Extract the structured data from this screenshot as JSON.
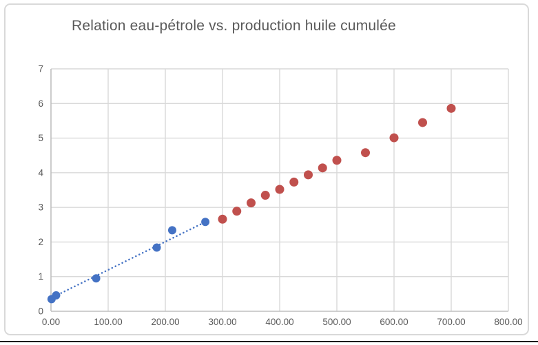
{
  "colors": {
    "blue_series": "#4472C4",
    "red_series": "#C0504D",
    "gridline": "#D9D9D9",
    "axis_line": "#BFBFBF",
    "chart_border": "#D9D9D9",
    "text": "#595959",
    "page_rule": "#000000",
    "background": "#FFFFFF"
  },
  "chart_data": {
    "type": "scatter",
    "title": "Relation eau-pétrole vs. production huile cumulée",
    "xlabel": "",
    "ylabel": "",
    "grid": true,
    "legend": "none",
    "x_axis": {
      "min": 0,
      "max": 800,
      "tick_step": 100,
      "tick_labels": [
        "0.00",
        "100.00",
        "200.00",
        "300.00",
        "400.00",
        "500.00",
        "600.00",
        "700.00",
        "800.00"
      ]
    },
    "y_axis": {
      "min": 0,
      "max": 7,
      "tick_step": 1,
      "tick_labels": [
        "0",
        "1",
        "2",
        "3",
        "4",
        "5",
        "6",
        "7"
      ]
    },
    "series": [
      {
        "id": "blue-series",
        "color": "#4472C4",
        "marker_diameter": 12,
        "points": [
          [
            1,
            0.35
          ],
          [
            9,
            0.46
          ],
          [
            79,
            0.95
          ],
          [
            185,
            1.84
          ],
          [
            212,
            2.34
          ],
          [
            270,
            2.58
          ]
        ]
      },
      {
        "id": "red-series",
        "color": "#C0504D",
        "marker_diameter": 13,
        "points": [
          [
            300,
            2.66
          ],
          [
            325,
            2.89
          ],
          [
            350,
            3.13
          ],
          [
            375,
            3.35
          ],
          [
            400,
            3.52
          ],
          [
            425,
            3.73
          ],
          [
            450,
            3.94
          ],
          [
            475,
            4.14
          ],
          [
            500,
            4.36
          ],
          [
            550,
            4.58
          ],
          [
            600,
            5.01
          ],
          [
            650,
            5.45
          ],
          [
            700,
            5.86
          ]
        ]
      }
    ],
    "trendline": {
      "style": "dotted",
      "color": "#4472C4",
      "from": [
        0,
        0.38
      ],
      "to": [
        275,
        2.62
      ]
    }
  }
}
